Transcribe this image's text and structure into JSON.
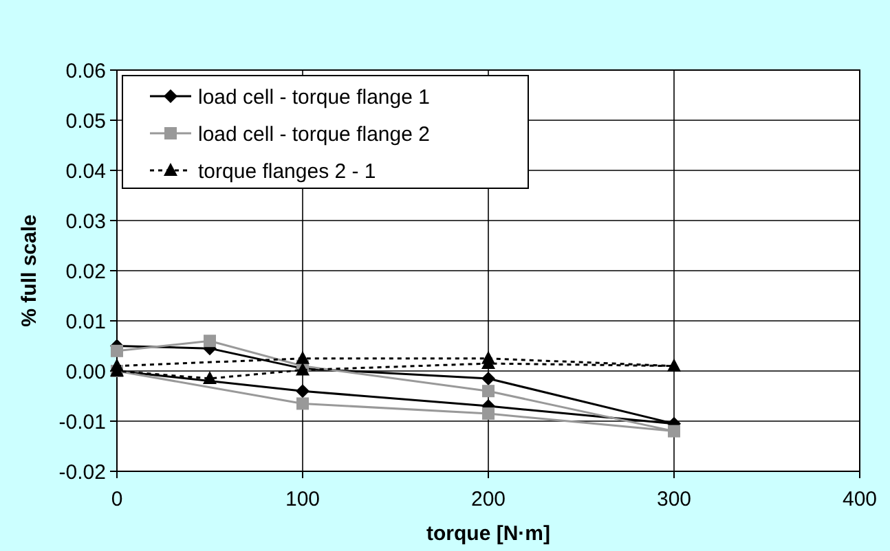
{
  "chart_data": {
    "type": "line",
    "xlabel": "torque [N·m]",
    "ylabel": "% full scale",
    "xlim": [
      0,
      400
    ],
    "xticks": [
      0,
      100,
      200,
      300,
      400
    ],
    "ylim": [
      -0.02,
      0.06
    ],
    "yticks": [
      {
        "value": -0.02,
        "label": "-0.02"
      },
      {
        "value": -0.01,
        "label": "-0.01"
      },
      {
        "value": 0,
        "label": "0.00"
      },
      {
        "value": 0.01,
        "label": "0.01"
      },
      {
        "value": 0.02,
        "label": "0.02"
      },
      {
        "value": 0.03,
        "label": "0.03"
      },
      {
        "value": 0.04,
        "label": "0.04"
      },
      {
        "value": 0.05,
        "label": "0.05"
      },
      {
        "value": 0.06,
        "label": "0.06"
      }
    ],
    "grid": true,
    "legend": "top left",
    "series": [
      {
        "name": "load cell - torque flange 1",
        "color": "#000000",
        "marker": "diamond",
        "line_style": "solid",
        "x": [
          0,
          50,
          100,
          200,
          300,
          200,
          100,
          0
        ],
        "values": [
          0.005,
          0.0045,
          0.0005,
          -0.0015,
          -0.0105,
          -0.007,
          -0.004,
          0
        ]
      },
      {
        "name": "load cell - torque flange 2",
        "color": "#999999",
        "marker": "square",
        "line_style": "solid",
        "x": [
          0,
          50,
          100,
          200,
          300,
          200,
          100,
          0
        ],
        "values": [
          0.004,
          0.006,
          0.001,
          -0.004,
          -0.012,
          -0.0085,
          -0.0065,
          0
        ]
      },
      {
        "name": "torque flanges 2 - 1",
        "color": "#000000",
        "marker": "triangle",
        "line_style": "dotted",
        "x": [
          0,
          100,
          200,
          300,
          200,
          100,
          50,
          0
        ],
        "values": [
          0.001,
          0.0025,
          0.0025,
          0.001,
          0.0015,
          0.0002,
          -0.0015,
          0
        ]
      }
    ]
  }
}
